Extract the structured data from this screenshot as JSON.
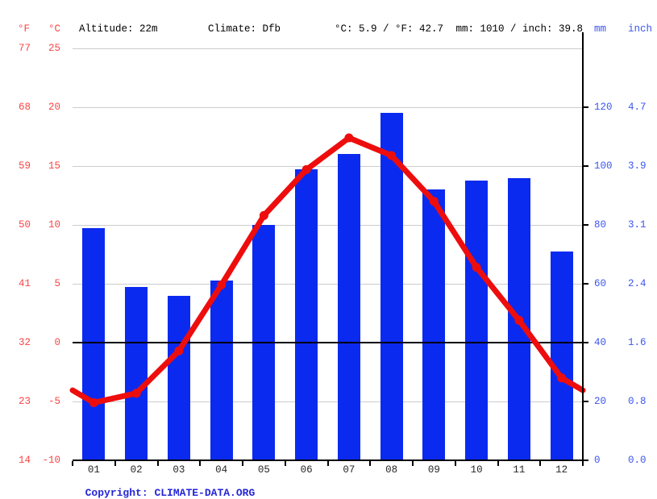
{
  "header": {
    "f_unit": "°F",
    "c_unit": "°C",
    "altitude": "Altitude: 22m",
    "climate": "Climate: Dfb",
    "temp_summary": "°C: 5.9 / °F: 42.7",
    "precip_summary": "mm: 1010 / inch: 39.8",
    "mm_unit": "mm",
    "inch_unit": "inch"
  },
  "axes": {
    "left_f_ticks": [
      "77",
      "68",
      "59",
      "50",
      "41",
      "32",
      "23",
      "14"
    ],
    "left_c_ticks": [
      "25",
      "20",
      "15",
      "10",
      "5",
      "0",
      "-5",
      "-10"
    ],
    "left_c_values": [
      25,
      20,
      15,
      10,
      5,
      0,
      -5,
      -10
    ],
    "right_mm_ticks": [
      "120",
      "100",
      "80",
      "60",
      "40",
      "20",
      "0"
    ],
    "right_mm_values": [
      120,
      100,
      80,
      60,
      40,
      20,
      0
    ],
    "right_inch_ticks": [
      "4.7",
      "3.9",
      "3.1",
      "2.4",
      "1.6",
      "0.8",
      "0.0"
    ]
  },
  "chart_data": {
    "type": "bar+line",
    "categories": [
      "01",
      "02",
      "03",
      "04",
      "05",
      "06",
      "07",
      "08",
      "09",
      "10",
      "11",
      "12"
    ],
    "series": [
      {
        "name": "precipitation_mm",
        "type": "bar",
        "values": [
          79,
          59,
          56,
          61,
          80,
          99,
          104,
          118,
          92,
          95,
          96,
          71
        ]
      },
      {
        "name": "temperature_c",
        "type": "line",
        "values": [
          -5.1,
          -4.3,
          -0.7,
          4.9,
          10.8,
          14.7,
          17.4,
          15.9,
          12.0,
          6.4,
          1.9,
          -3.0
        ]
      }
    ],
    "title": "",
    "xlabel": "",
    "ylabel_left": "°C",
    "ylabel_right": "mm",
    "ylim_c": [
      -10,
      25
    ],
    "ylim_mm": [
      0,
      140
    ],
    "grid": true,
    "legend": "none"
  },
  "footer": {
    "copyright_label": "Copyright: ",
    "copyright_link": "CLIMATE-DATA.ORG"
  },
  "colors": {
    "bar": "#0b2af0",
    "line": "#ee0d0d",
    "red_text": "#fb4545",
    "blue_text": "#3b55f0",
    "grid": "#cccccc",
    "axis": "#000000",
    "month_text": "#262626",
    "copyright": "#2626d8"
  }
}
